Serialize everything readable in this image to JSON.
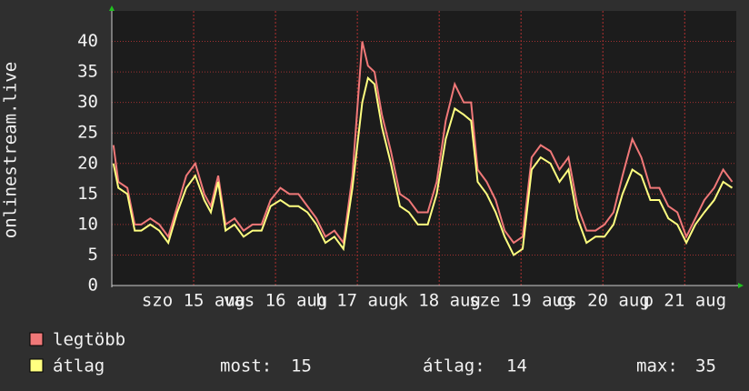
{
  "chart_data": {
    "type": "line",
    "y_label": "onlinestream.live",
    "x": [
      0.02,
      0.08,
      0.19,
      0.28,
      0.36,
      0.47,
      0.58,
      0.69,
      0.8,
      0.91,
      1.02,
      1.13,
      1.21,
      1.3,
      1.39,
      1.5,
      1.61,
      1.72,
      1.83,
      1.94,
      2.06,
      2.17,
      2.28,
      2.39,
      2.5,
      2.61,
      2.72,
      2.83,
      2.94,
      3.06,
      3.13,
      3.21,
      3.3,
      3.41,
      3.52,
      3.63,
      3.74,
      3.86,
      3.97,
      4.08,
      4.19,
      4.3,
      4.39,
      4.47,
      4.58,
      4.69,
      4.8,
      4.91,
      5.02,
      5.13,
      5.24,
      5.36,
      5.47,
      5.58,
      5.69,
      5.8,
      5.91,
      6.02,
      6.13,
      6.24,
      6.36,
      6.47,
      6.58,
      6.69,
      6.8,
      6.91,
      7.02,
      7.13,
      7.24,
      7.36,
      7.47,
      7.58
    ],
    "series": [
      {
        "name": "legtöbb",
        "color": "#f07878",
        "values": [
          23,
          17,
          16,
          10,
          10,
          11,
          10,
          8,
          13,
          18,
          20,
          15,
          13,
          18,
          10,
          11,
          9,
          10,
          10,
          14,
          16,
          15,
          15,
          13,
          11,
          8,
          9,
          7,
          18,
          40,
          36,
          35,
          28,
          22,
          15,
          14,
          12,
          12,
          17,
          27,
          33,
          30,
          30,
          19,
          17,
          14,
          9,
          7,
          8,
          21,
          23,
          22,
          19,
          21,
          13,
          9,
          9,
          10,
          12,
          18,
          24,
          21,
          16,
          16,
          13,
          12,
          8,
          11,
          14,
          16,
          19,
          17
        ]
      },
      {
        "name": "átlag",
        "color": "#ffff80",
        "values": [
          20,
          16,
          15,
          9,
          9,
          10,
          9,
          7,
          12,
          16,
          18,
          14,
          12,
          17,
          9,
          10,
          8,
          9,
          9,
          13,
          14,
          13,
          13,
          12,
          10,
          7,
          8,
          6,
          16,
          30,
          34,
          33,
          26,
          20,
          13,
          12,
          10,
          10,
          15,
          24,
          29,
          28,
          27,
          17,
          15,
          12,
          8,
          5,
          6,
          19,
          21,
          20,
          17,
          19,
          11,
          7,
          8,
          8,
          10,
          15,
          19,
          18,
          14,
          14,
          11,
          10,
          7,
          10,
          12,
          14,
          17,
          16
        ]
      }
    ],
    "xlim": [
      0,
      7.63
    ],
    "xticks": [
      {
        "value": 1,
        "label": "szo 15 aug"
      },
      {
        "value": 2,
        "label": "vas 16 aug"
      },
      {
        "value": 3,
        "label": "h 17 aug"
      },
      {
        "value": 4,
        "label": "k 18 aug"
      },
      {
        "value": 5,
        "label": "sze 19 aug"
      },
      {
        "value": 6,
        "label": "cs 20 aug"
      },
      {
        "value": 7,
        "label": "p 21 aug"
      }
    ],
    "ylim": [
      0,
      45
    ],
    "yticks": [
      0,
      5,
      10,
      15,
      20,
      25,
      30,
      35,
      40
    ],
    "grid": true,
    "stats": [
      {
        "label": "most:",
        "value": 15
      },
      {
        "label": "átlag:",
        "value": 14
      },
      {
        "label": "max:",
        "value": 35
      }
    ]
  }
}
